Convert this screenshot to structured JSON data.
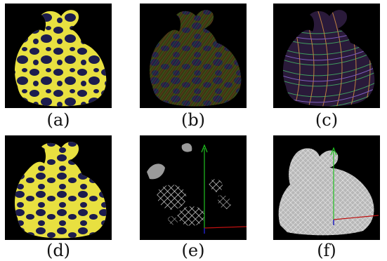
{
  "captions": {
    "a": "(a)",
    "b": "(b)",
    "c": "(c)",
    "d": "(d)",
    "e": "(e)",
    "f": "(f)"
  },
  "colors": {
    "background": "#000000",
    "yellow": "#e8e040",
    "navy": "#1c1c4e",
    "axis_green": "#20c020",
    "axis_red": "#c01010",
    "axis_blue": "#2020c0",
    "points_white": "#e8e8e8"
  }
}
